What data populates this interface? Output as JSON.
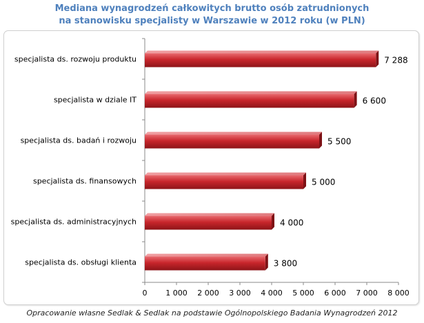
{
  "chart_data": {
    "type": "bar",
    "orientation": "horizontal",
    "title_line1": "Mediana wynagrodzeń całkowitych brutto osób zatrudnionych",
    "title_line2": "na stanowisku specjalisty w Warszawie w 2012 roku (w PLN)",
    "categories": [
      "specjalista ds. rozwoju produktu",
      "specjalista w dziale IT",
      "specjalista ds. badań i rozwoju",
      "specjalista ds. finansowych",
      "specjalista ds. administracyjnych",
      "specjalista ds. obsługi klienta"
    ],
    "values": [
      7288,
      6600,
      5500,
      5000,
      4000,
      3800
    ],
    "value_labels": [
      "7 288",
      "6 600",
      "5 500",
      "5 000",
      "4 000",
      "3 800"
    ],
    "xlim": [
      0,
      8000
    ],
    "xticks": [
      0,
      1000,
      2000,
      3000,
      4000,
      5000,
      6000,
      7000,
      8000
    ],
    "xtick_labels": [
      "0",
      "1 000",
      "2 000",
      "3 000",
      "4 000",
      "5 000",
      "6 000",
      "7 000",
      "8 000"
    ],
    "grid": false,
    "bar_color": "#c0272d"
  },
  "footer": "Opracowanie własne Sedlak & Sedlak na podstawie Ogólnopolskiego Badania Wynagrodzeń 2012"
}
